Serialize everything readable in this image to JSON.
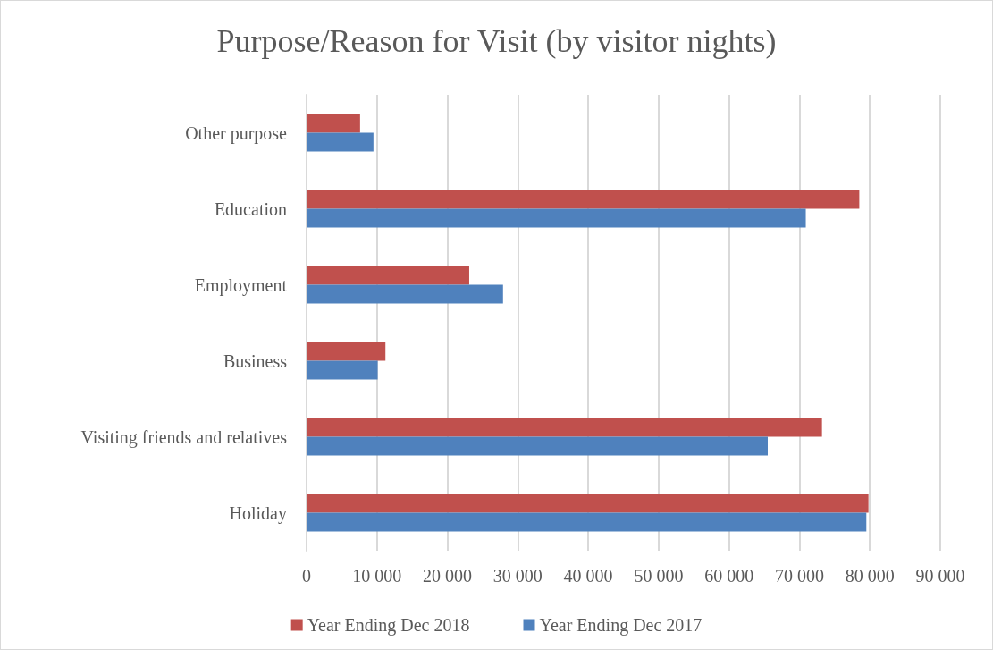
{
  "chart_data": {
    "type": "bar",
    "orientation": "horizontal",
    "title": "Purpose/Reason for Visit (by visitor nights)",
    "categories": [
      "Other purpose",
      "Education",
      "Employment",
      "Business",
      "Visiting friends and relatives",
      "Holiday"
    ],
    "series": [
      {
        "name": "Year Ending Dec 2018",
        "color": "#c0504d",
        "values": [
          7600,
          78500,
          23100,
          11200,
          73200,
          79800
        ]
      },
      {
        "name": "Year Ending Dec 2017",
        "color": "#4f81bd",
        "values": [
          9500,
          70900,
          27900,
          10100,
          65500,
          79500
        ]
      }
    ],
    "xlim": [
      0,
      90000
    ],
    "xticks": [
      0,
      {
        "value": 10000,
        "label": "10 000"
      },
      {
        "value": 20000,
        "label": "20 000"
      },
      {
        "value": 30000,
        "label": "30 000"
      },
      {
        "value": 40000,
        "label": "40 000"
      },
      {
        "value": 50000,
        "label": "50 000"
      },
      {
        "value": 60000,
        "label": "60 000"
      },
      {
        "value": 70000,
        "label": "70 000"
      },
      {
        "value": 80000,
        "label": "80 000"
      },
      {
        "value": 90000,
        "label": "90 000"
      }
    ],
    "grid": "x",
    "legend": "bottom"
  }
}
